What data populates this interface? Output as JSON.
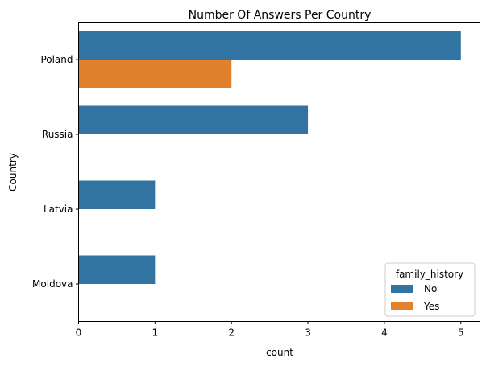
{
  "chart_data": {
    "type": "bar",
    "orientation": "horizontal",
    "title": "Number Of Answers Per Country",
    "xlabel": "count",
    "ylabel": "Country",
    "categories": [
      "Poland",
      "Russia",
      "Latvia",
      "Moldova"
    ],
    "series": [
      {
        "name": "No",
        "values": [
          5,
          3,
          1,
          1
        ],
        "color": "#3274a1"
      },
      {
        "name": "Yes",
        "values": [
          2,
          0,
          0,
          0
        ],
        "color": "#e1812c"
      }
    ],
    "xlim": [
      0,
      5.25
    ],
    "xticks": [
      "0",
      "1",
      "2",
      "3",
      "4",
      "5"
    ],
    "grid": false,
    "legend": {
      "title": "family_history",
      "placement": "lower-right"
    }
  }
}
